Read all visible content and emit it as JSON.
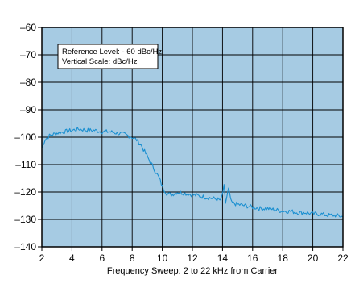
{
  "chart_data": {
    "type": "line",
    "title": "",
    "xlabel": "Frequency Sweep: 2 to 22 kHz from Carrier",
    "ylabel": "",
    "xlim": [
      2,
      22
    ],
    "ylim": [
      -140,
      -60
    ],
    "grid": true,
    "x_ticks": [
      2,
      4,
      6,
      8,
      10,
      12,
      14,
      16,
      18,
      20,
      22
    ],
    "y_ticks": [
      -60,
      -70,
      -80,
      -90,
      -100,
      -110,
      -120,
      -130,
      -140
    ],
    "x_tick_labels": [
      "2",
      "4",
      "6",
      "8",
      "10",
      "12",
      "14",
      "16",
      "18",
      "20",
      "22"
    ],
    "y_tick_labels": [
      "–60",
      "–70",
      "–80",
      "–90",
      "–100",
      "–110",
      "–120",
      "–130",
      "–140"
    ],
    "annotation_lines": [
      "Reference Level: - 60 dBc/Hz",
      "Vertical Scale: dBc/Hz"
    ],
    "colors": {
      "plot_background": "#a6cbe3",
      "grid": "#000000",
      "trace": "#1a8fd0"
    },
    "series": [
      {
        "values": [
          [
            2.0,
            -104
          ],
          [
            2.2,
            -101
          ],
          [
            2.5,
            -99.5
          ],
          [
            3.0,
            -98.5
          ],
          [
            3.5,
            -98
          ],
          [
            4.0,
            -97.5
          ],
          [
            4.5,
            -97
          ],
          [
            5.0,
            -97.5
          ],
          [
            5.5,
            -97.5
          ],
          [
            6.0,
            -98
          ],
          [
            6.5,
            -98
          ],
          [
            7.0,
            -98.5
          ],
          [
            7.5,
            -99
          ],
          [
            8.0,
            -100
          ],
          [
            8.3,
            -101
          ],
          [
            8.6,
            -103
          ],
          [
            8.9,
            -106
          ],
          [
            9.2,
            -109
          ],
          [
            9.5,
            -112
          ],
          [
            9.8,
            -115
          ],
          [
            10.0,
            -118
          ],
          [
            10.3,
            -120.5
          ],
          [
            10.6,
            -121
          ],
          [
            11.0,
            -120
          ],
          [
            11.5,
            -120.5
          ],
          [
            12.0,
            -121
          ],
          [
            12.5,
            -121.5
          ],
          [
            13.0,
            -122
          ],
          [
            13.5,
            -122.5
          ],
          [
            13.9,
            -123
          ],
          [
            14.1,
            -118
          ],
          [
            14.2,
            -124
          ],
          [
            14.4,
            -119
          ],
          [
            14.6,
            -124
          ],
          [
            15.0,
            -124.5
          ],
          [
            15.5,
            -125
          ],
          [
            16.0,
            -125.5
          ],
          [
            16.5,
            -126
          ],
          [
            17.0,
            -126
          ],
          [
            17.5,
            -126.5
          ],
          [
            18.0,
            -127
          ],
          [
            18.5,
            -127
          ],
          [
            19.0,
            -127.5
          ],
          [
            19.5,
            -127.5
          ],
          [
            20.0,
            -128
          ],
          [
            20.5,
            -128
          ],
          [
            21.0,
            -128.5
          ],
          [
            21.5,
            -128.5
          ],
          [
            22.0,
            -129
          ]
        ]
      }
    ]
  }
}
